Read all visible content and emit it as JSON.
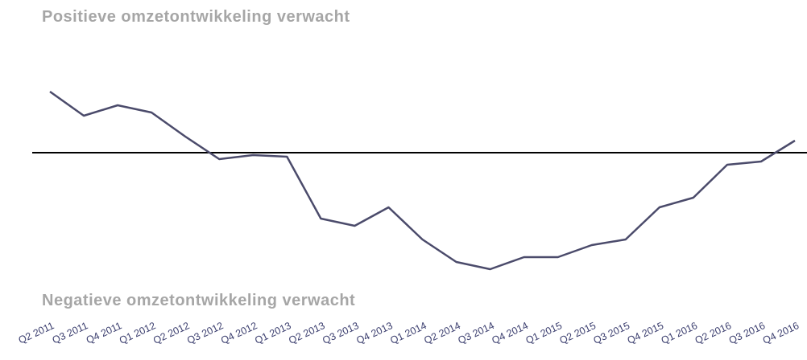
{
  "chart_data": {
    "type": "line",
    "annotations": [
      "Positieve omzetontwikkeling verwacht",
      "Negatieve omzetontwikkeling verwacht"
    ],
    "categories": [
      "Q2 2011",
      "Q3 2011",
      "Q4 2011",
      "Q1 2012",
      "Q2 2012",
      "Q3 2012",
      "Q4 2012",
      "Q1 2013",
      "Q2 2013",
      "Q3 2013",
      "Q4 2013",
      "Q1 2014",
      "Q2 2014",
      "Q3 2014",
      "Q4 2014",
      "Q1 2015",
      "Q2 2015",
      "Q3 2015",
      "Q4 2015",
      "Q1 2016",
      "Q2 2016",
      "Q3 2016",
      "Q4 2016"
    ],
    "values": [
      7.6,
      4.6,
      5.9,
      5.0,
      2.0,
      -0.8,
      -0.3,
      -0.5,
      -8.2,
      -9.1,
      -6.8,
      -10.8,
      -13.6,
      -14.5,
      -13.0,
      -13.0,
      -11.5,
      -10.8,
      -6.8,
      -5.6,
      -1.5,
      -1.1,
      1.5
    ],
    "color": "#4b4b6b",
    "ylim": [
      -16,
      15
    ]
  }
}
